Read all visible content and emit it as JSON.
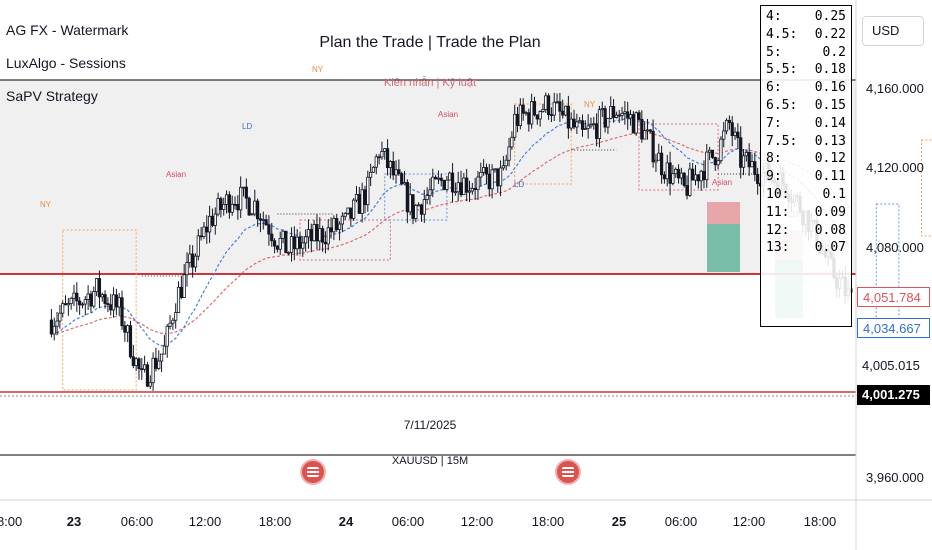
{
  "indicators": [
    "AG FX - Watermark",
    "LuxAlgo - Sessions",
    "SaPV Strategy"
  ],
  "watermark": {
    "title": "Plan the Trade | Trade the Plan",
    "subtitle": "Kiên nhẫn | Kỷ luật"
  },
  "currency_button": "USD",
  "side_table": [
    {
      "k": "4:",
      "v": "0.25"
    },
    {
      "k": "4.5:",
      "v": "0.22"
    },
    {
      "k": "5:",
      "v": "0.2"
    },
    {
      "k": "5.5:",
      "v": "0.18"
    },
    {
      "k": "6:",
      "v": "0.16"
    },
    {
      "k": "6.5:",
      "v": "0.15"
    },
    {
      "k": "7:",
      "v": "0.14"
    },
    {
      "k": "7.5:",
      "v": "0.13"
    },
    {
      "k": "8:",
      "v": "0.12"
    },
    {
      "k": "9:",
      "v": "0.11"
    },
    {
      "k": "10:",
      "v": "0.1"
    },
    {
      "k": "11:",
      "v": "0.09"
    },
    {
      "k": "12:",
      "v": "0.08"
    },
    {
      "k": "13:",
      "v": "0.07"
    }
  ],
  "date_label": "7/11/2025",
  "symbol_label": "XAUUSD | 15M",
  "session_labels": [
    "NY",
    "LD",
    "Asian"
  ],
  "price_tags": {
    "red": {
      "text": "4,051.784",
      "color": "#e0515b"
    },
    "blue": {
      "text": "4,034.667",
      "color": "#2f6fd6"
    },
    "gray": {
      "text": "4,005.015"
    },
    "last": {
      "text": "4,001.275"
    }
  },
  "colors": {
    "up": "#131722",
    "down": "#131722",
    "ema_fast": "#4a7ee8",
    "ema_slow": "#e06a70",
    "level": "#d0333b",
    "zone": "#f0f0f0",
    "session_box": "#f5a25a"
  },
  "chart_data": {
    "type": "candlestick",
    "symbol": "XAUUSD",
    "timeframe": "15M",
    "y_axis": {
      "ticks": [
        4160,
        4120,
        4080,
        3960
      ],
      "tick_labels": [
        "4,160.000",
        "4,120.000",
        "4,080.000",
        "3,960.000"
      ]
    },
    "x_axis": {
      "tick_labels": [
        "18:00",
        "23",
        "06:00",
        "12:00",
        "18:00",
        "24",
        "06:00",
        "12:00",
        "18:00",
        "25",
        "06:00",
        "12:00",
        "18:00"
      ]
    },
    "levels": [
      4160,
      4063,
      4002
    ],
    "zone": [
      4063,
      4160
    ],
    "last_price": 4001.275,
    "path_hours": [
      [
        -2,
        4040
      ],
      [
        2,
        4055
      ],
      [
        4,
        4045
      ],
      [
        6,
        4010
      ],
      [
        8,
        4025
      ],
      [
        9,
        4050
      ],
      [
        12,
        4090
      ],
      [
        14,
        4102
      ],
      [
        16,
        4098
      ],
      [
        18,
        4080
      ],
      [
        19,
        4075
      ],
      [
        20,
        4078
      ],
      [
        24,
        4088
      ],
      [
        26,
        4105
      ],
      [
        27,
        4125
      ],
      [
        30,
        4095
      ],
      [
        33,
        4112
      ],
      [
        35,
        4108
      ],
      [
        38,
        4112
      ],
      [
        39,
        4140
      ],
      [
        42,
        4148
      ],
      [
        45,
        4132
      ],
      [
        48,
        4145
      ],
      [
        50,
        4138
      ],
      [
        52,
        4118
      ],
      [
        54,
        4105
      ],
      [
        55,
        4112
      ],
      [
        57,
        4125
      ],
      [
        58,
        4138
      ],
      [
        59,
        4120
      ],
      [
        61,
        4113
      ],
      [
        63,
        4108
      ],
      [
        65,
        4090
      ],
      [
        67,
        4065
      ],
      [
        69,
        4048
      ],
      [
        72,
        4055
      ],
      [
        74,
        4060
      ],
      [
        75,
        4075
      ],
      [
        76,
        4095
      ],
      [
        78,
        4120
      ],
      [
        80,
        4132
      ],
      [
        82,
        4125
      ],
      [
        83,
        4112
      ],
      [
        85,
        4108
      ],
      [
        87,
        4103
      ],
      [
        88,
        4085
      ],
      [
        90,
        4070
      ],
      [
        92,
        4092
      ],
      [
        94,
        4075
      ],
      [
        96,
        4058
      ],
      [
        98,
        4080
      ],
      [
        100,
        4077
      ],
      [
        102,
        4058
      ],
      [
        104,
        4048
      ],
      [
        105,
        4030
      ],
      [
        106,
        4044
      ],
      [
        107,
        4035
      ],
      [
        108,
        4014
      ]
    ]
  }
}
